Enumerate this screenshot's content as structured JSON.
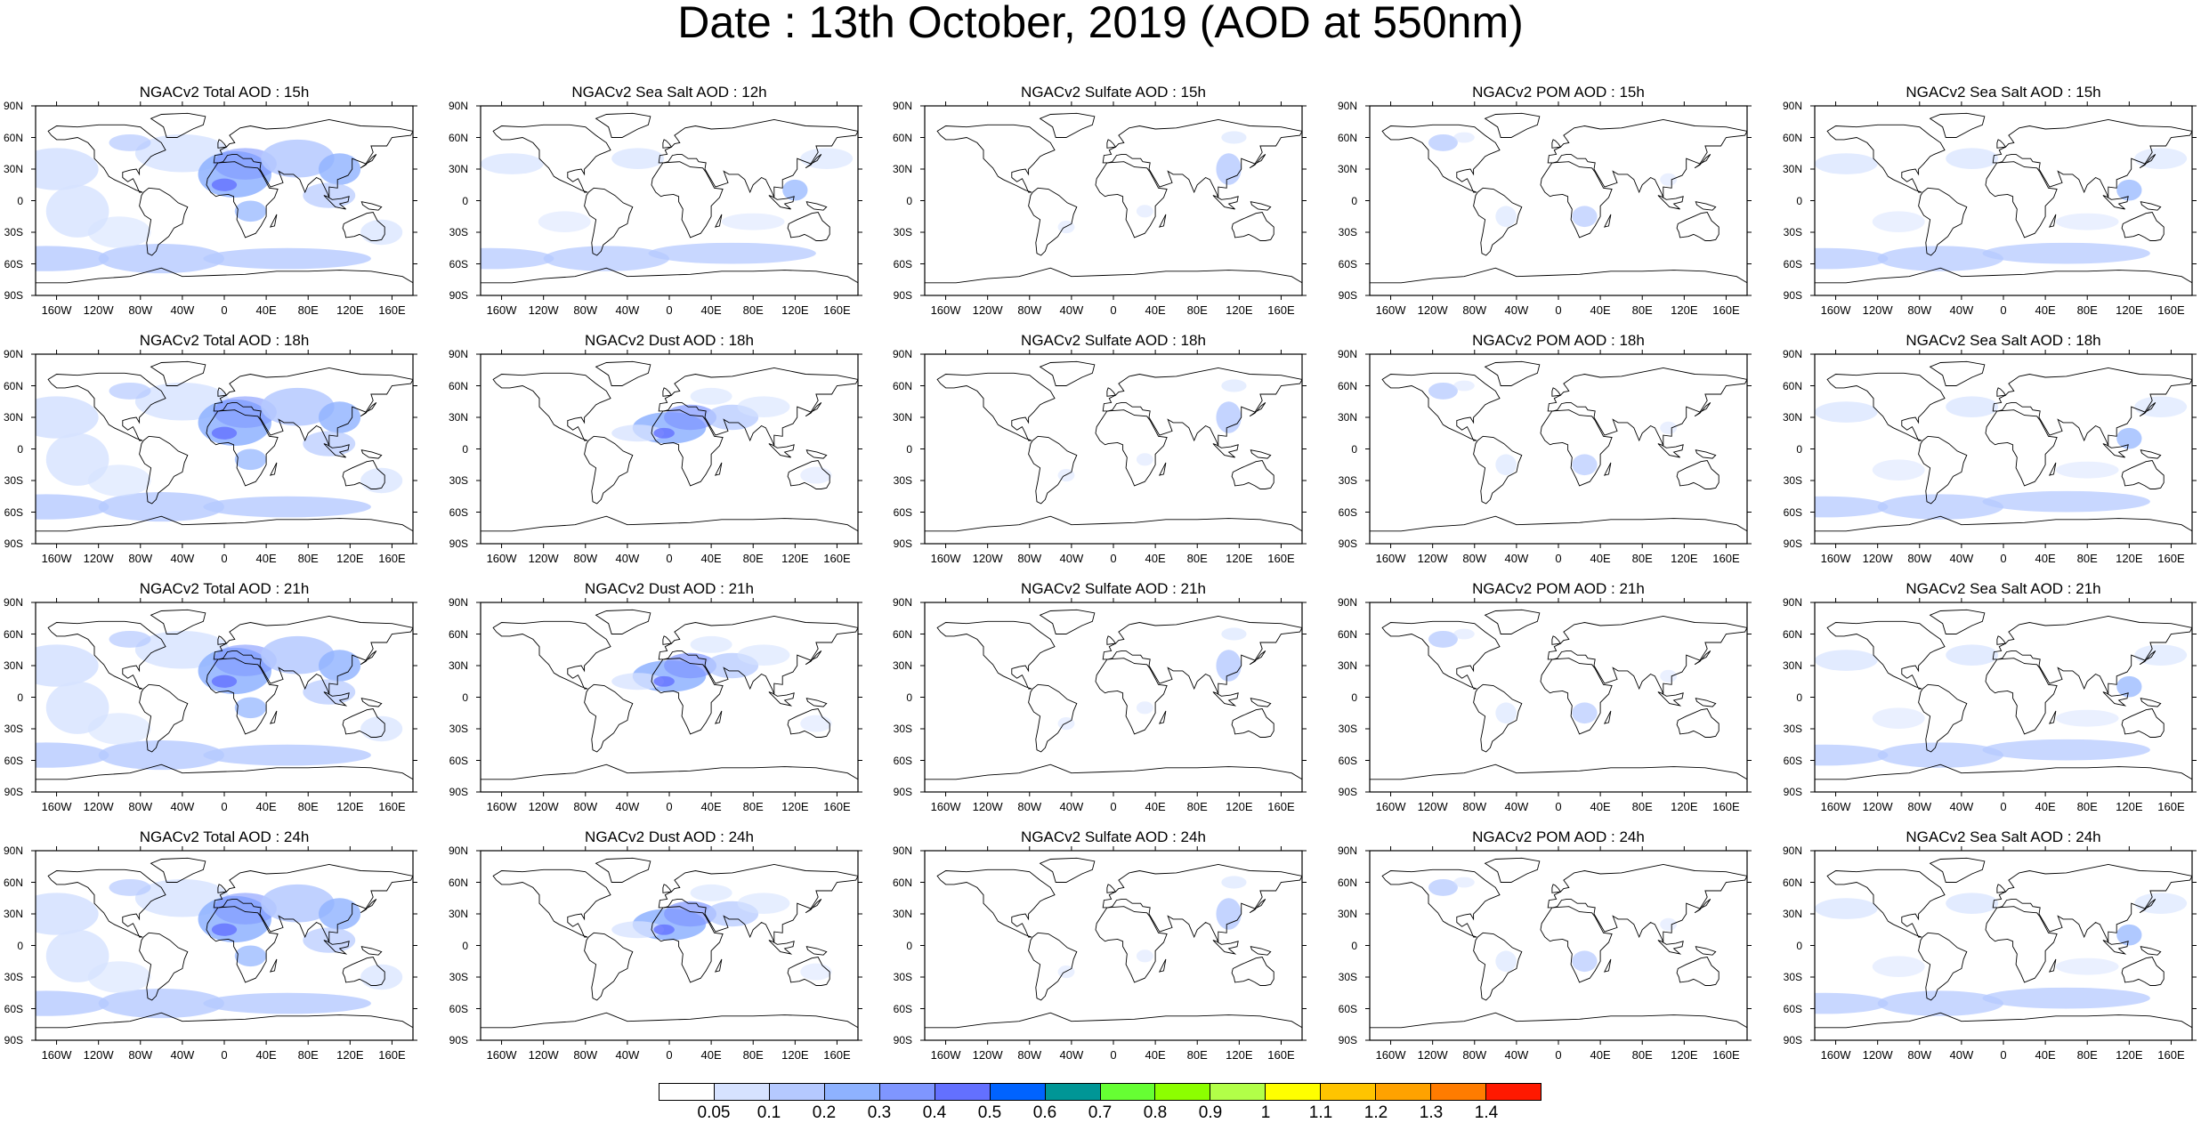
{
  "title": "Date : 13th October, 2019 (AOD at 550nm)",
  "panels": [
    "NGACv2 Total AOD : 15h",
    "NGACv2 Sea Salt  AOD : 12h",
    "NGACv2 Sulfate AOD : 15h",
    "NGACv2 POM AOD : 15h",
    "NGACv2 Sea Salt AOD : 15h",
    "NGACv2 Total AOD : 18h",
    "NGACv2 Dust AOD : 18h",
    "NGACv2 Sulfate AOD : 18h",
    "NGACv2 POM AOD : 18h",
    "NGACv2 Sea Salt AOD : 18h",
    "NGACv2 Total AOD : 21h",
    "NGACv2 Dust AOD : 21h",
    "NGACv2 Sulfate AOD : 21h",
    "NGACv2 POM AOD : 21h",
    "NGACv2 Sea Salt AOD : 21h",
    "NGACv2 Total AOD : 24h",
    "NGACv2 Dust AOD : 24h",
    "NGACv2 Sulfate AOD : 24h",
    "NGACv2 POM AOD : 24h",
    "NGACv2 Sea Salt  AOD : 24h"
  ],
  "panel_kinds": [
    "total",
    "seasalt",
    "sulfate",
    "pom",
    "seasalt",
    "total",
    "dust",
    "sulfate",
    "pom",
    "seasalt",
    "total",
    "dust",
    "sulfate",
    "pom",
    "seasalt",
    "total",
    "dust",
    "sulfate",
    "pom",
    "seasalt"
  ],
  "lat_ticks": [
    "90N",
    "60N",
    "30N",
    "0",
    "30S",
    "60S",
    "90S"
  ],
  "lon_ticks": [
    "160W",
    "120W",
    "80W",
    "40W",
    "0",
    "40E",
    "80E",
    "120E",
    "160E"
  ],
  "colorbar": {
    "colors": [
      "#ffffff",
      "#d6e2ff",
      "#b5c9ff",
      "#8eb2ff",
      "#7f96ff",
      "#6370ff",
      "#0063ff",
      "#009696",
      "#66ff33",
      "#8cff00",
      "#b2ff48",
      "#ffff00",
      "#ffc400",
      "#ffa200",
      "#ff7c00",
      "#ff1900"
    ],
    "labels": [
      "0.05",
      "0.1",
      "0.2",
      "0.3",
      "0.4",
      "0.5",
      "0.6",
      "0.7",
      "0.8",
      "0.9",
      "1",
      "1.1",
      "1.2",
      "1.3",
      "1.4"
    ]
  }
}
